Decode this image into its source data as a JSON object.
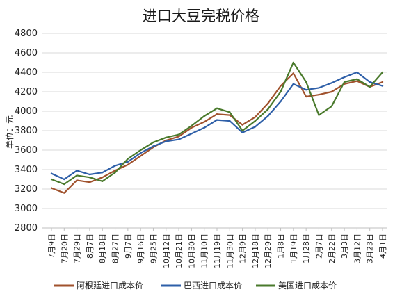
{
  "chart_data": {
    "type": "line",
    "title": "进口大豆完税价格",
    "ylabel": "单位：元",
    "xlabel": "",
    "ylim": [
      2800,
      4800
    ],
    "yticks": [
      2800,
      3000,
      3200,
      3400,
      3600,
      3800,
      4000,
      4200,
      4400,
      4600,
      4800
    ],
    "grid": "horizontal",
    "legend_position": "bottom",
    "categories": [
      "7月9日",
      "7月20日",
      "7月29日",
      "8月7日",
      "8月18日",
      "8月27日",
      "9月7日",
      "9月16日",
      "9月25日",
      "10月12日",
      "10月21日",
      "10月30日",
      "11月10日",
      "11月19日",
      "11月30日",
      "12月9日",
      "12月18日",
      "12月29日",
      "1月8日",
      "1月19日",
      "1月28日",
      "2月7日",
      "2月22日",
      "3月3日",
      "3月12日",
      "3月23日",
      "4月1日"
    ],
    "series": [
      {
        "name": "阿根廷进口成本价",
        "color": "#a0522d",
        "values": [
          3210,
          3160,
          3290,
          3270,
          3320,
          3390,
          3450,
          3540,
          3630,
          3700,
          3740,
          3830,
          3890,
          3970,
          3960,
          3860,
          3940,
          4080,
          4260,
          4390,
          4150,
          4170,
          4200,
          4280,
          4310,
          4250,
          4300
        ]
      },
      {
        "name": "巴西进口成本价",
        "color": "#2e5fa8",
        "values": [
          3360,
          3300,
          3390,
          3350,
          3370,
          3440,
          3480,
          3570,
          3640,
          3690,
          3710,
          3770,
          3830,
          3910,
          3900,
          3780,
          3840,
          3950,
          4100,
          4280,
          4220,
          4240,
          4290,
          4350,
          4400,
          4300,
          4260
        ]
      },
      {
        "name": "美国进口成本价",
        "color": "#4a7a2c",
        "values": [
          3300,
          3250,
          3340,
          3320,
          3280,
          3370,
          3510,
          3600,
          3680,
          3730,
          3760,
          3850,
          3950,
          4030,
          3990,
          3800,
          3900,
          4020,
          4200,
          4500,
          4300,
          3960,
          4050,
          4300,
          4330,
          4250,
          4400
        ]
      }
    ]
  }
}
